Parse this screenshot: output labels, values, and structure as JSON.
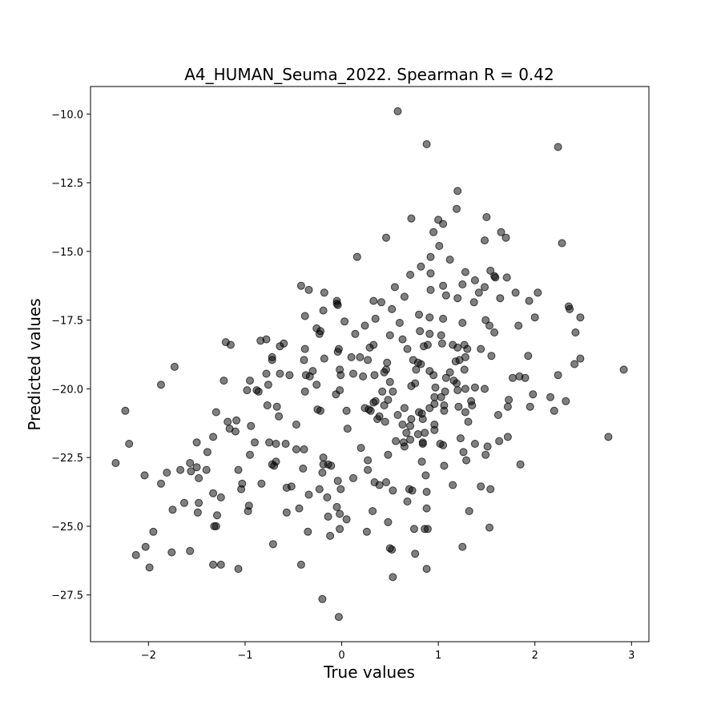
{
  "chart_data": {
    "type": "scatter",
    "title": "A4_HUMAN_Seuma_2022. Spearman R = 0.42",
    "xlabel": "True values",
    "ylabel": "Predicted values",
    "xlim": [
      -2.6,
      3.18
    ],
    "ylim": [
      -29.2,
      -9.0
    ],
    "xticks": [
      -2,
      -1,
      0,
      1,
      2,
      3
    ],
    "yticks": [
      -27.5,
      -25.0,
      -22.5,
      -20.0,
      -17.5,
      -15.0,
      -12.5,
      -10.0
    ],
    "xtick_labels": [
      "−2",
      "−1",
      "0",
      "1",
      "2",
      "3"
    ],
    "ytick_labels": [
      "−27.5",
      "−25.0",
      "−22.5",
      "−20.0",
      "−17.5",
      "−15.0",
      "−12.5",
      "−10.0"
    ],
    "grid": false,
    "marker_color": "#000000",
    "marker_opacity": 0.5,
    "points": [
      [
        0.58,
        -9.9
      ],
      [
        0.88,
        -11.1
      ],
      [
        2.24,
        -11.2
      ],
      [
        1.2,
        -12.8
      ],
      [
        1.19,
        -13.45
      ],
      [
        0.72,
        -13.8
      ],
      [
        1.0,
        -13.85
      ],
      [
        1.05,
        -14.0
      ],
      [
        1.5,
        -13.75
      ],
      [
        0.95,
        -14.3
      ],
      [
        0.46,
        -14.5
      ],
      [
        1.65,
        -14.3
      ],
      [
        1.7,
        -14.5
      ],
      [
        1.48,
        -14.6
      ],
      [
        2.28,
        -14.7
      ],
      [
        1.01,
        -14.8
      ],
      [
        0.16,
        -15.2
      ],
      [
        0.92,
        -15.2
      ],
      [
        1.12,
        -15.3
      ],
      [
        0.82,
        -15.55
      ],
      [
        1.54,
        -15.7
      ],
      [
        1.58,
        -15.9
      ],
      [
        1.59,
        -15.95
      ],
      [
        1.71,
        -15.95
      ],
      [
        1.28,
        -15.75
      ],
      [
        0.71,
        -15.85
      ],
      [
        0.92,
        -15.8
      ],
      [
        1.38,
        -16.05
      ],
      [
        1.48,
        -16.3
      ],
      [
        1.25,
        -16.2
      ],
      [
        1.05,
        -16.25
      ],
      [
        0.55,
        -16.3
      ],
      [
        0.92,
        -16.4
      ],
      [
        -0.42,
        -16.25
      ],
      [
        -0.34,
        -16.4
      ],
      [
        1.42,
        -16.5
      ],
      [
        1.8,
        -16.5
      ],
      [
        2.03,
        -16.5
      ],
      [
        1.08,
        -16.6
      ],
      [
        1.2,
        -16.7
      ],
      [
        0.65,
        -16.65
      ],
      [
        1.64,
        -16.7
      ],
      [
        1.94,
        -16.8
      ],
      [
        0.33,
        -16.8
      ],
      [
        0.41,
        -16.85
      ],
      [
        -0.18,
        -16.5
      ],
      [
        -0.05,
        -16.8
      ],
      [
        -0.05,
        -16.9
      ],
      [
        -0.04,
        -16.95
      ],
      [
        1.37,
        -16.85
      ],
      [
        2.35,
        -17.0
      ],
      [
        2.36,
        -17.1
      ],
      [
        0.52,
        -17.1
      ],
      [
        -0.19,
        -17.15
      ],
      [
        -0.38,
        -17.35
      ],
      [
        0.8,
        -17.3
      ],
      [
        0.91,
        -17.4
      ],
      [
        1.05,
        -17.45
      ],
      [
        2.0,
        -17.4
      ],
      [
        2.47,
        -17.4
      ],
      [
        1.49,
        -17.5
      ],
      [
        0.35,
        -17.45
      ],
      [
        0.6,
        -17.6
      ],
      [
        0.03,
        -17.55
      ],
      [
        1.25,
        -17.6
      ],
      [
        1.53,
        -17.7
      ],
      [
        1.83,
        -17.7
      ],
      [
        0.24,
        -17.7
      ],
      [
        -0.26,
        -17.8
      ],
      [
        -0.22,
        -17.9
      ],
      [
        -0.23,
        -18.0
      ],
      [
        0.81,
        -17.9
      ],
      [
        0.91,
        -18.0
      ],
      [
        1.03,
        -18.05
      ],
      [
        1.58,
        -17.95
      ],
      [
        2.42,
        -17.95
      ],
      [
        0.14,
        -18.0
      ],
      [
        0.5,
        -18.05
      ],
      [
        0.63,
        -18.2
      ],
      [
        -0.78,
        -18.2
      ],
      [
        -0.84,
        -18.25
      ],
      [
        -1.2,
        -18.3
      ],
      [
        -1.15,
        -18.4
      ],
      [
        -0.6,
        -18.35
      ],
      [
        -0.64,
        -18.45
      ],
      [
        0.85,
        -18.45
      ],
      [
        0.68,
        -18.55
      ],
      [
        0.29,
        -18.5
      ],
      [
        0.33,
        -18.4
      ],
      [
        1.04,
        -18.35
      ],
      [
        1.15,
        -18.4
      ],
      [
        1.27,
        -18.4
      ],
      [
        1.3,
        -18.55
      ],
      [
        1.44,
        -18.55
      ],
      [
        1.2,
        -18.5
      ],
      [
        0.89,
        -18.4
      ],
      [
        -0.38,
        -18.55
      ],
      [
        -0.03,
        -18.55
      ],
      [
        -0.04,
        -18.65
      ],
      [
        -0.72,
        -18.85
      ],
      [
        -0.72,
        -18.95
      ],
      [
        -0.18,
        -18.9
      ],
      [
        0.1,
        -18.85
      ],
      [
        0.19,
        -18.85
      ],
      [
        0.27,
        -18.95
      ],
      [
        0.47,
        -19.05
      ],
      [
        0.74,
        -18.95
      ],
      [
        0.79,
        -19.05
      ],
      [
        0.82,
        -19.1
      ],
      [
        1.18,
        -19.0
      ],
      [
        1.22,
        -18.95
      ],
      [
        1.28,
        -18.85
      ],
      [
        1.55,
        -18.8
      ],
      [
        1.93,
        -18.8
      ],
      [
        2.47,
        -18.9
      ],
      [
        2.41,
        -19.1
      ],
      [
        -0.39,
        -18.95
      ],
      [
        -1.73,
        -19.2
      ],
      [
        -0.02,
        -19.3
      ],
      [
        0.46,
        -19.3
      ],
      [
        0.77,
        -19.3
      ],
      [
        0.91,
        -19.35
      ],
      [
        1.12,
        -19.4
      ],
      [
        1.27,
        -19.3
      ],
      [
        -0.64,
        -19.45
      ],
      [
        -0.78,
        -19.45
      ],
      [
        -0.3,
        -19.35
      ],
      [
        -0.37,
        -19.5
      ],
      [
        -0.33,
        -19.55
      ],
      [
        0.12,
        -19.45
      ],
      [
        0.22,
        -19.55
      ],
      [
        0.34,
        -19.5
      ],
      [
        0.44,
        -19.4
      ],
      [
        0.95,
        -19.5
      ],
      [
        1.08,
        -19.6
      ],
      [
        1.16,
        -19.7
      ],
      [
        1.19,
        -19.8
      ],
      [
        1.77,
        -19.6
      ],
      [
        1.84,
        -19.55
      ],
      [
        1.9,
        -19.6
      ],
      [
        2.24,
        -19.5
      ],
      [
        2.92,
        -19.3
      ],
      [
        -0.01,
        -19.5
      ],
      [
        -0.54,
        -19.5
      ],
      [
        -1.22,
        -19.7
      ],
      [
        -0.95,
        -19.7
      ],
      [
        -0.76,
        -19.85
      ],
      [
        -1.87,
        -19.85
      ],
      [
        -0.26,
        -19.85
      ],
      [
        0.5,
        -19.75
      ],
      [
        0.76,
        -19.8
      ],
      [
        0.72,
        -19.9
      ],
      [
        0.97,
        -19.95
      ],
      [
        1.28,
        -20.0
      ],
      [
        1.38,
        -19.95
      ],
      [
        1.48,
        -20.0
      ],
      [
        1.2,
        -20.05
      ],
      [
        1.07,
        -20.1
      ],
      [
        0.53,
        -20.1
      ],
      [
        -0.38,
        -20.1
      ],
      [
        -0.86,
        -20.1
      ],
      [
        -0.88,
        -20.05
      ],
      [
        -0.98,
        -20.05
      ],
      [
        -0.02,
        -20.05
      ],
      [
        -0.06,
        -20.2
      ],
      [
        0.42,
        -20.1
      ],
      [
        1.03,
        -20.3
      ],
      [
        0.96,
        -20.3
      ],
      [
        0.48,
        -20.4
      ],
      [
        0.35,
        -20.45
      ],
      [
        0.33,
        -20.5
      ],
      [
        0.44,
        -20.6
      ],
      [
        0.24,
        -20.7
      ],
      [
        0.28,
        -20.75
      ],
      [
        0.3,
        -20.8
      ],
      [
        -0.25,
        -20.75
      ],
      [
        -0.22,
        -20.8
      ],
      [
        0.05,
        -20.8
      ],
      [
        0.91,
        -20.7
      ],
      [
        0.96,
        -20.55
      ],
      [
        1.06,
        -20.6
      ],
      [
        1.21,
        -20.65
      ],
      [
        1.34,
        -20.45
      ],
      [
        1.35,
        -20.6
      ],
      [
        1.73,
        -20.4
      ],
      [
        1.98,
        -20.2
      ],
      [
        2.16,
        -20.3
      ],
      [
        2.32,
        -20.45
      ],
      [
        1.72,
        -20.65
      ],
      [
        1.95,
        -20.65
      ],
      [
        2.2,
        -20.8
      ],
      [
        1.28,
        -20.85
      ],
      [
        1.06,
        -20.8
      ],
      [
        0.8,
        -20.85
      ],
      [
        0.83,
        -20.9
      ],
      [
        0.65,
        -20.7
      ],
      [
        0.58,
        -20.95
      ],
      [
        0.39,
        -21.0
      ],
      [
        0.37,
        -21.1
      ],
      [
        0.45,
        -21.2
      ],
      [
        0.72,
        -21.1
      ],
      [
        0.84,
        -21.1
      ],
      [
        0.63,
        -21.3
      ],
      [
        0.71,
        -21.35
      ],
      [
        0.96,
        -21.3
      ],
      [
        1.31,
        -21.2
      ],
      [
        1.62,
        -20.95
      ],
      [
        -1.3,
        -20.85
      ],
      [
        -2.24,
        -20.8
      ],
      [
        -1.18,
        -21.2
      ],
      [
        -1.09,
        -21.15
      ],
      [
        -1.16,
        -21.45
      ],
      [
        -1.1,
        -21.55
      ],
      [
        -0.94,
        -21.35
      ],
      [
        -0.67,
        -20.65
      ],
      [
        -0.77,
        -20.6
      ],
      [
        -0.65,
        -21.0
      ],
      [
        -0.47,
        -21.3
      ],
      [
        0.06,
        -21.45
      ],
      [
        0.96,
        -21.5
      ],
      [
        0.86,
        -21.6
      ],
      [
        0.79,
        -21.65
      ],
      [
        0.67,
        -21.6
      ],
      [
        0.71,
        -21.85
      ],
      [
        0.84,
        -21.95
      ],
      [
        0.84,
        -22.0
      ],
      [
        1.02,
        -22.0
      ],
      [
        1.05,
        -22.05
      ],
      [
        1.23,
        -21.8
      ],
      [
        1.38,
        -22.0
      ],
      [
        1.51,
        -22.1
      ],
      [
        1.63,
        -21.9
      ],
      [
        1.72,
        -21.75
      ],
      [
        2.76,
        -21.75
      ],
      [
        -1.33,
        -21.75
      ],
      [
        -0.58,
        -22.0
      ],
      [
        -0.68,
        -22.0
      ],
      [
        -0.75,
        -21.95
      ],
      [
        -0.9,
        -21.95
      ],
      [
        -0.47,
        -22.2
      ],
      [
        -0.39,
        -22.2
      ],
      [
        0.2,
        -22.15
      ],
      [
        0.56,
        -21.9
      ],
      [
        0.64,
        -21.95
      ],
      [
        0.65,
        -22.1
      ],
      [
        -1.5,
        -21.95
      ],
      [
        -2.2,
        -22.0
      ],
      [
        -1.39,
        -22.3
      ],
      [
        -0.95,
        -22.4
      ],
      [
        0.27,
        -22.6
      ],
      [
        0.48,
        -22.4
      ],
      [
        1.26,
        -22.3
      ],
      [
        1.49,
        -22.4
      ],
      [
        -0.19,
        -22.5
      ],
      [
        -0.14,
        -22.75
      ],
      [
        -0.19,
        -22.75
      ],
      [
        -0.11,
        -22.8
      ],
      [
        -0.68,
        -22.65
      ],
      [
        -0.72,
        -22.75
      ],
      [
        -0.7,
        -22.8
      ],
      [
        -0.4,
        -22.9
      ],
      [
        0.83,
        -22.65
      ],
      [
        1.06,
        -22.8
      ],
      [
        1.29,
        -22.6
      ],
      [
        1.85,
        -22.75
      ],
      [
        -1.57,
        -22.7
      ],
      [
        -2.34,
        -22.7
      ],
      [
        -1.5,
        -22.85
      ],
      [
        -1.56,
        -23.0
      ],
      [
        -1.4,
        -22.95
      ],
      [
        -1.07,
        -22.95
      ],
      [
        -1.67,
        -22.95
      ],
      [
        -1.81,
        -23.05
      ],
      [
        -2.04,
        -23.15
      ],
      [
        -0.2,
        -23.05
      ],
      [
        0.27,
        -22.95
      ],
      [
        0.12,
        -23.25
      ],
      [
        0.87,
        -23.15
      ],
      [
        -0.04,
        -23.35
      ],
      [
        -1.48,
        -23.25
      ],
      [
        -1.03,
        -23.45
      ],
      [
        -0.83,
        -23.45
      ],
      [
        -1.87,
        -23.45
      ],
      [
        -0.52,
        -23.55
      ],
      [
        0.34,
        -23.4
      ],
      [
        0.39,
        -23.5
      ],
      [
        0.46,
        -23.4
      ],
      [
        1.15,
        -23.5
      ],
      [
        1.44,
        -23.55
      ],
      [
        0.7,
        -23.65
      ],
      [
        0.73,
        -23.7
      ],
      [
        1.54,
        -23.65
      ],
      [
        0.53,
        -23.7
      ],
      [
        -0.01,
        -23.65
      ],
      [
        -0.23,
        -23.65
      ],
      [
        -0.57,
        -23.6
      ],
      [
        -1.04,
        -23.65
      ],
      [
        -1.33,
        -23.8
      ],
      [
        -0.34,
        -23.85
      ],
      [
        -0.15,
        -23.95
      ],
      [
        0.88,
        -23.75
      ],
      [
        -1.25,
        -23.95
      ],
      [
        -1.48,
        -24.15
      ],
      [
        -1.63,
        -24.15
      ],
      [
        -0.96,
        -24.25
      ],
      [
        -1.75,
        -24.4
      ],
      [
        -0.44,
        -24.35
      ],
      [
        -0.57,
        -24.5
      ],
      [
        -0.05,
        -24.3
      ],
      [
        -0.02,
        -24.55
      ],
      [
        0.32,
        -24.45
      ],
      [
        0.68,
        -24.1
      ],
      [
        0.88,
        -24.35
      ],
      [
        1.32,
        -24.45
      ],
      [
        -0.97,
        -24.45
      ],
      [
        -1.49,
        -24.5
      ],
      [
        -1.29,
        -24.6
      ],
      [
        -0.14,
        -24.65
      ],
      [
        0.05,
        -24.75
      ],
      [
        0.48,
        -24.85
      ],
      [
        -1.32,
        -25.0
      ],
      [
        -1.3,
        -25.0
      ],
      [
        -0.35,
        -25.2
      ],
      [
        -0.02,
        -25.1
      ],
      [
        0.26,
        -25.2
      ],
      [
        0.75,
        -25.1
      ],
      [
        0.86,
        -25.1
      ],
      [
        0.89,
        -25.1
      ],
      [
        1.53,
        -25.05
      ],
      [
        -1.95,
        -25.2
      ],
      [
        -0.12,
        -25.35
      ],
      [
        -0.71,
        -25.65
      ],
      [
        1.25,
        -25.75
      ],
      [
        -2.03,
        -25.75
      ],
      [
        0.5,
        -25.8
      ],
      [
        0.52,
        -25.85
      ],
      [
        -1.57,
        -25.9
      ],
      [
        -1.76,
        -25.95
      ],
      [
        -2.13,
        -26.05
      ],
      [
        0.76,
        -26.0
      ],
      [
        -1.33,
        -26.4
      ],
      [
        -1.25,
        -26.4
      ],
      [
        -0.42,
        -26.4
      ],
      [
        -1.99,
        -26.5
      ],
      [
        -1.07,
        -26.55
      ],
      [
        0.88,
        -26.55
      ],
      [
        0.53,
        -26.85
      ],
      [
        -0.2,
        -27.65
      ],
      [
        -0.03,
        -28.3
      ]
    ]
  }
}
